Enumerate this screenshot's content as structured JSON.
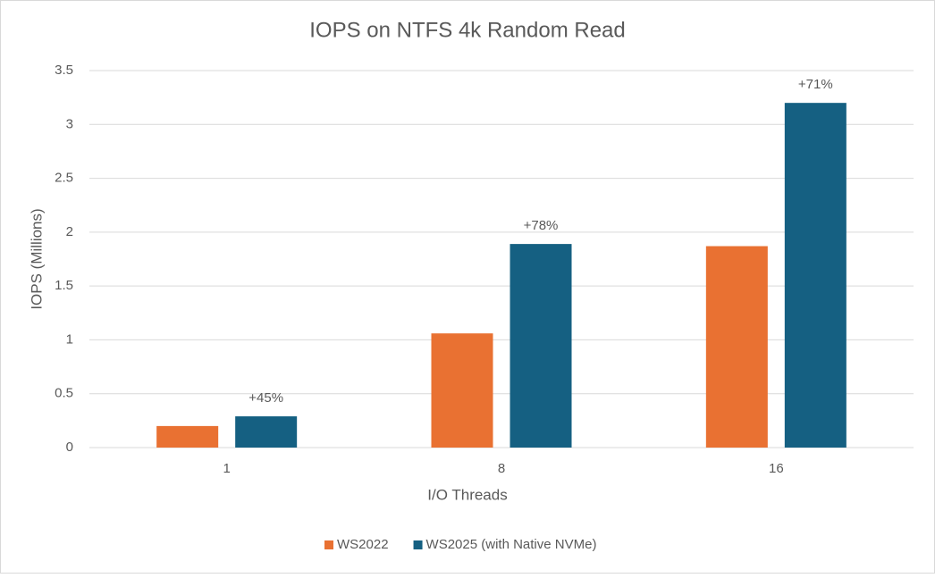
{
  "chart_data": {
    "type": "bar",
    "title": "IOPS on NTFS 4k Random Read",
    "x_label": "I/O Threads",
    "y_label": "IOPS (Millions)",
    "categories": [
      "1",
      "8",
      "16"
    ],
    "series": [
      {
        "name": "WS2022",
        "color": "#e97132",
        "values": [
          0.2,
          1.06,
          1.87
        ]
      },
      {
        "name": "WS2025 (with Native NVMe)",
        "color": "#156082",
        "values": [
          0.29,
          1.89,
          3.2
        ]
      }
    ],
    "annotations": [
      "+45%",
      "+78%",
      "+71%"
    ],
    "ylim": [
      0,
      3.5
    ],
    "yticks": [
      0,
      0.5,
      1,
      1.5,
      2,
      2.5,
      3,
      3.5
    ],
    "grid": true,
    "legend": "bottom"
  }
}
